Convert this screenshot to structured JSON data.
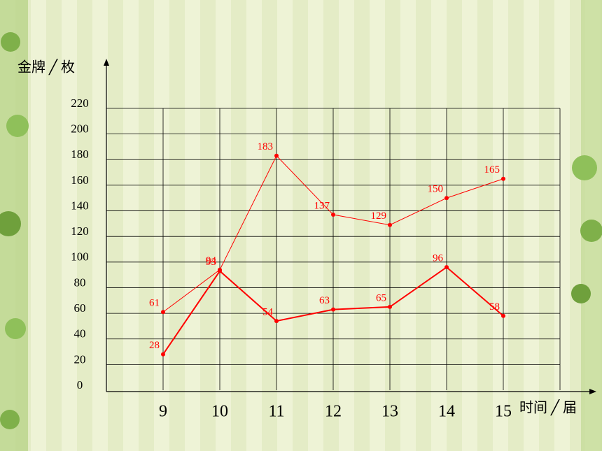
{
  "chart_data": {
    "type": "line",
    "y_label": "金牌 ╱ 枚",
    "x_label": "时间 ╱ 届",
    "categories": [
      "9",
      "10",
      "11",
      "12",
      "13",
      "14",
      "15"
    ],
    "series": [
      {
        "color": "#ff0000",
        "line_width": 1,
        "values": [
          61,
          94,
          183,
          137,
          129,
          150,
          165
        ]
      },
      {
        "color": "#ff0000",
        "line_width": 2,
        "values": [
          28,
          93,
          54,
          63,
          65,
          96,
          58
        ]
      }
    ],
    "ylim": [
      0,
      220
    ],
    "yticks": [
      0,
      20,
      40,
      60,
      80,
      100,
      120,
      140,
      160,
      180,
      200,
      220
    ],
    "grid": true
  }
}
